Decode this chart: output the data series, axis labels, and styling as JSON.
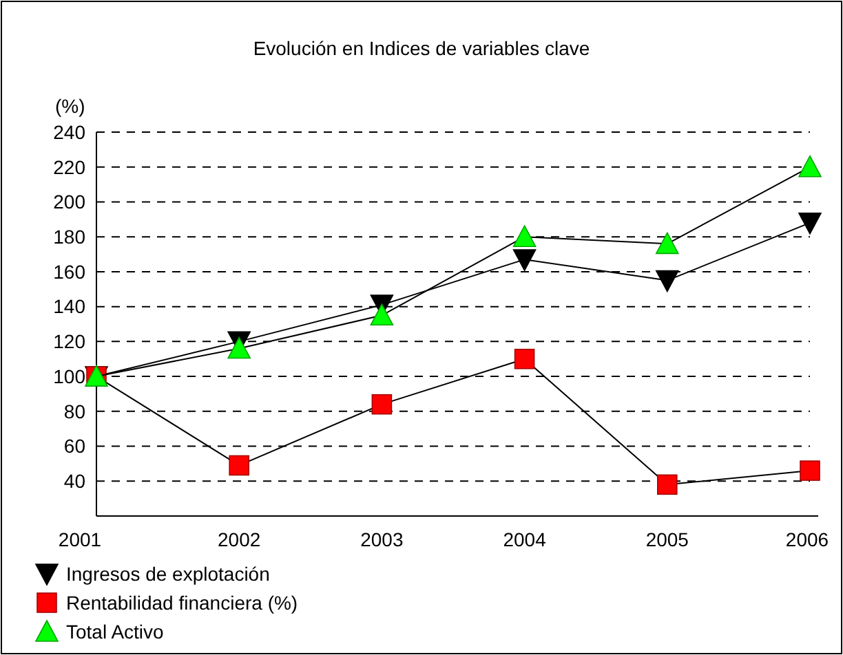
{
  "chart_data": {
    "type": "line",
    "title": "Evolución en Indices de variables clave",
    "ylabel": "(%)",
    "categories": [
      "2001",
      "2002",
      "2003",
      "2004",
      "2005",
      "2006"
    ],
    "series": [
      {
        "name": "Ingresos de explotación",
        "color": "#000000",
        "marker": "triangle",
        "values": [
          100,
          120,
          141,
          167,
          155,
          188
        ]
      },
      {
        "name": "Rentabilidad financiera (%)",
        "color": "#ff0000",
        "marker": "square",
        "values": [
          100,
          49,
          84,
          110,
          38,
          46
        ]
      },
      {
        "name": "Total Activo",
        "color": "#00ff00",
        "marker": "triangle",
        "values": [
          100,
          116,
          135,
          180,
          176,
          220
        ]
      }
    ],
    "ylim": [
      20,
      240
    ],
    "yticks": [
      40,
      60,
      80,
      100,
      120,
      140,
      160,
      180,
      200,
      220,
      240
    ],
    "grid": "y",
    "legend": "bottom left"
  }
}
